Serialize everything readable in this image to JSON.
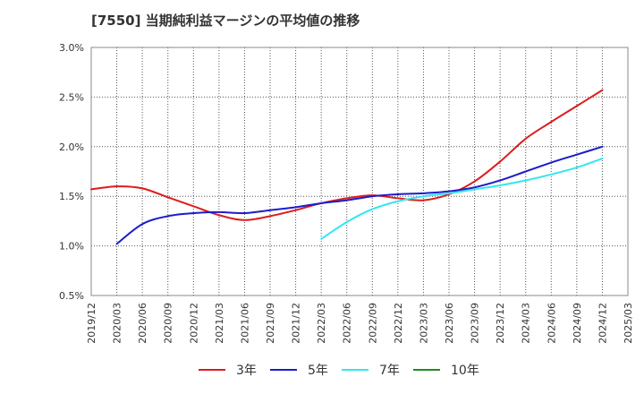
{
  "chart_data": {
    "type": "line",
    "title": "[7550]  当期純利益マージンの平均値の推移",
    "xlabel": "",
    "ylabel": "",
    "x_tick_labels": [
      "2019/12",
      "2020/03",
      "2020/06",
      "2020/09",
      "2020/12",
      "2021/03",
      "2021/06",
      "2021/09",
      "2021/12",
      "2022/03",
      "2022/06",
      "2022/09",
      "2022/12",
      "2023/03",
      "2023/06",
      "2023/09",
      "2023/12",
      "2024/03",
      "2024/06",
      "2024/09",
      "2024/12",
      "2025/03"
    ],
    "y_ticks": [
      0.5,
      1.0,
      1.5,
      2.0,
      2.5,
      3.0
    ],
    "y_tick_labels": [
      "0.5%",
      "1.0%",
      "1.5%",
      "2.0%",
      "2.5%",
      "3.0%"
    ],
    "ylim": [
      0.5,
      3.0
    ],
    "grid": true,
    "legend_position": "bottom",
    "series": [
      {
        "name": "3年",
        "color": "#dd1c1c",
        "points": [
          [
            "2019/12",
            1.57
          ],
          [
            "2020/03",
            1.6
          ],
          [
            "2020/06",
            1.58
          ],
          [
            "2020/09",
            1.49
          ],
          [
            "2020/12",
            1.4
          ],
          [
            "2021/03",
            1.31
          ],
          [
            "2021/06",
            1.26
          ],
          [
            "2021/09",
            1.3
          ],
          [
            "2021/12",
            1.36
          ],
          [
            "2022/03",
            1.43
          ],
          [
            "2022/06",
            1.48
          ],
          [
            "2022/09",
            1.51
          ],
          [
            "2022/12",
            1.48
          ],
          [
            "2023/03",
            1.46
          ],
          [
            "2023/06",
            1.52
          ],
          [
            "2023/09",
            1.65
          ],
          [
            "2023/12",
            1.85
          ],
          [
            "2024/03",
            2.08
          ],
          [
            "2024/06",
            2.25
          ],
          [
            "2024/09",
            2.41
          ],
          [
            "2024/12",
            2.57
          ]
        ]
      },
      {
        "name": "5年",
        "color": "#1c1ccc",
        "points": [
          [
            "2020/03",
            1.02
          ],
          [
            "2020/06",
            1.22
          ],
          [
            "2020/09",
            1.3
          ],
          [
            "2020/12",
            1.33
          ],
          [
            "2021/03",
            1.34
          ],
          [
            "2021/06",
            1.33
          ],
          [
            "2021/09",
            1.36
          ],
          [
            "2021/12",
            1.39
          ],
          [
            "2022/03",
            1.43
          ],
          [
            "2022/06",
            1.46
          ],
          [
            "2022/09",
            1.5
          ],
          [
            "2022/12",
            1.52
          ],
          [
            "2023/03",
            1.53
          ],
          [
            "2023/06",
            1.55
          ],
          [
            "2023/09",
            1.59
          ],
          [
            "2023/12",
            1.66
          ],
          [
            "2024/03",
            1.75
          ],
          [
            "2024/06",
            1.84
          ],
          [
            "2024/09",
            1.92
          ],
          [
            "2024/12",
            2.0
          ]
        ]
      },
      {
        "name": "7年",
        "color": "#33e6f0",
        "points": [
          [
            "2022/03",
            1.07
          ],
          [
            "2022/06",
            1.24
          ],
          [
            "2022/09",
            1.37
          ],
          [
            "2022/12",
            1.45
          ],
          [
            "2023/03",
            1.5
          ],
          [
            "2023/06",
            1.53
          ],
          [
            "2023/09",
            1.57
          ],
          [
            "2023/12",
            1.61
          ],
          [
            "2024/03",
            1.66
          ],
          [
            "2024/06",
            1.72
          ],
          [
            "2024/09",
            1.79
          ],
          [
            "2024/12",
            1.88
          ]
        ]
      },
      {
        "name": "10年",
        "color": "#228b22",
        "points": []
      }
    ]
  }
}
